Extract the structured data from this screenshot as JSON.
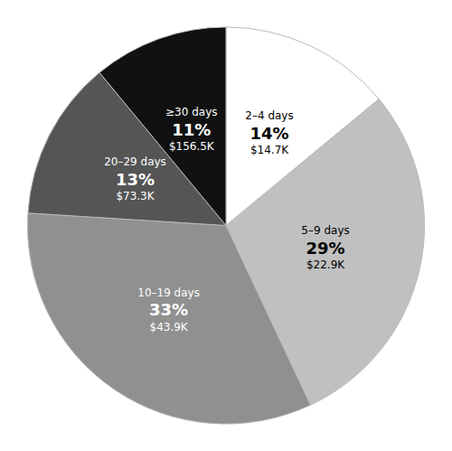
{
  "chart_data": {
    "type": "pie",
    "categories": [
      "2–4 days",
      "5–9 days",
      "10–19 days",
      "20–29 days",
      "≥30 days"
    ],
    "values": [
      14,
      29,
      33,
      13,
      11
    ],
    "value_labels": [
      "14%",
      "29%",
      "33%",
      "13%",
      "11%"
    ],
    "costs": [
      "$14.7K",
      "$22.9K",
      "$43.9K",
      "$73.3K",
      "$156.5K"
    ],
    "colors": [
      "#ffffff",
      "#c0c0c0",
      "#909090",
      "#555555",
      "#111111"
    ],
    "data_labels": true
  }
}
